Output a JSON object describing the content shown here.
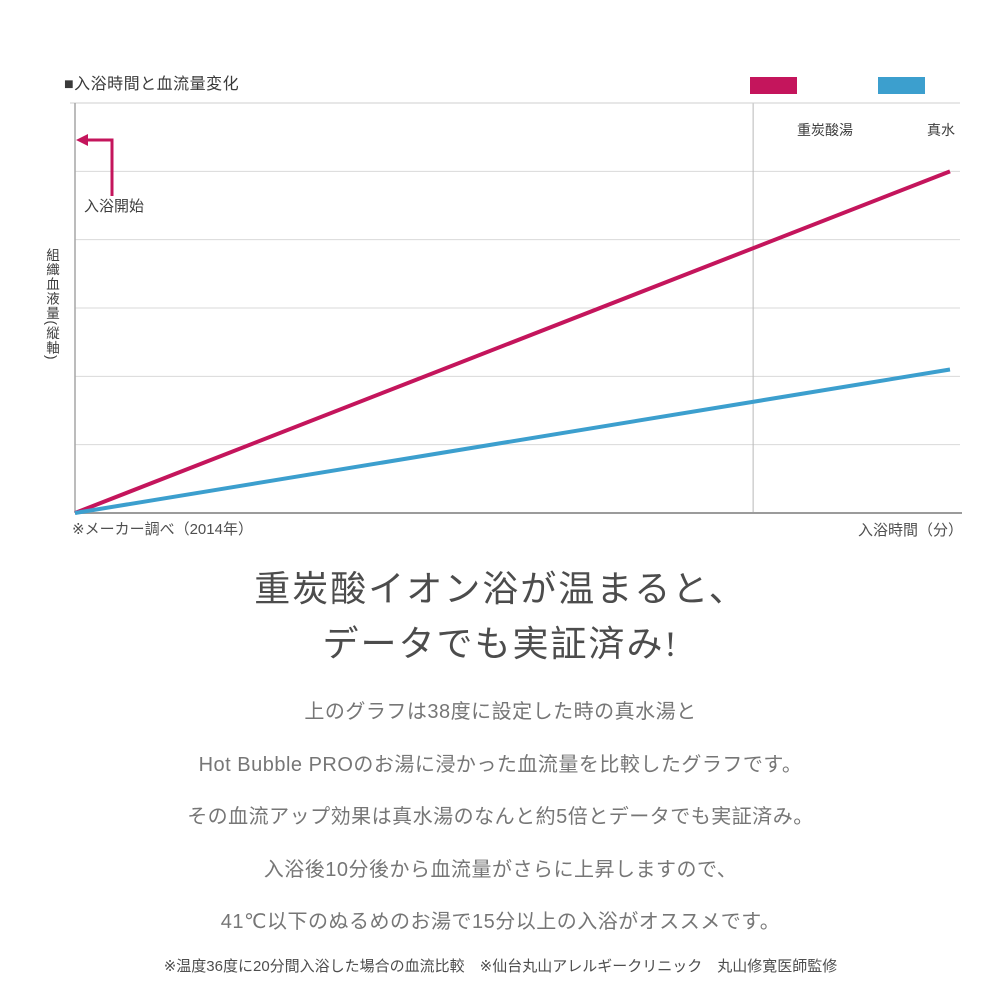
{
  "chart": {
    "title": "■入浴時間と血流量変化",
    "legend": [
      {
        "label": "重炭酸湯",
        "color": "#c4155c"
      },
      {
        "label": "真水",
        "color": "#3c9fce"
      }
    ],
    "annotation_label": "入浴開始",
    "y_axis_label": "組織血液量(縦軸)",
    "x_axis_label": "入浴時間（分）",
    "source_note": "※メーカー調べ（2014年）"
  },
  "chart_data": {
    "type": "line",
    "title": "入浴時間と血流量変化",
    "xlabel": "入浴時間（分）",
    "ylabel": "組織血液量（縦軸）",
    "x_range": [
      0,
      20
    ],
    "y_range": [
      0,
      6
    ],
    "grid": true,
    "h_gridlines_y": [
      1,
      2,
      3,
      4,
      5
    ],
    "v_gridline_x": 15.5,
    "legend_position": "top-right",
    "series": [
      {
        "name": "重炭酸湯",
        "color": "#c4155c",
        "x": [
          0,
          20
        ],
        "y": [
          0,
          5.0
        ]
      },
      {
        "name": "真水",
        "color": "#3c9fce",
        "x": [
          0,
          20
        ],
        "y": [
          0,
          2.1
        ]
      }
    ],
    "annotation": {
      "label": "入浴開始",
      "x": 0
    }
  },
  "headline": {
    "line1": "重炭酸イオン浴が温まると、",
    "line2": "データでも実証済み!"
  },
  "body": {
    "lines": [
      "上のグラフは38度に設定した時の真水湯と",
      "Hot Bubble PROのお湯に浸かった血流量を比較したグラフです。",
      "その血流アップ効果は真水湯のなんと約5倍とデータでも実証済み。",
      "入浴後10分後から血流量がさらに上昇しますので、",
      "41℃以下のぬるめのお湯で15分以上の入浴がオススメです。"
    ]
  },
  "footer": {
    "note": "※温度36度に20分間入浴した場合の血流比較　※仙台丸山アレルギークリニック　丸山修寛医師監修"
  }
}
